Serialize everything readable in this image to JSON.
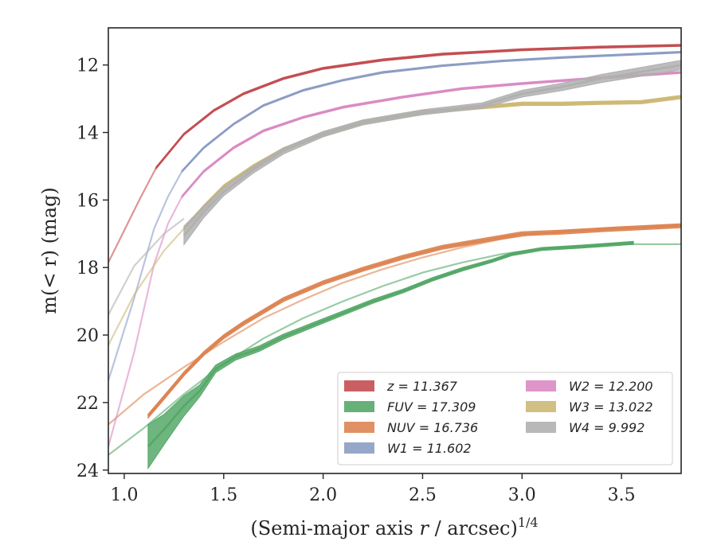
{
  "chart_data": {
    "type": "line",
    "xlabel": "(Semi-major axis r / arcsec)",
    "xlabel_italic": "r",
    "xlabel_exponent": "1/4",
    "ylabel": "m(< r) (mag)",
    "xlim": [
      0.92,
      3.8
    ],
    "ylim": [
      24.1,
      10.9
    ],
    "y_inverted": true,
    "x_ticks": [
      1.0,
      1.5,
      2.0,
      2.5,
      3.0,
      3.5
    ],
    "x_tick_labels": [
      "1.0",
      "1.5",
      "2.0",
      "2.5",
      "3.0",
      "3.5"
    ],
    "y_ticks": [
      12,
      14,
      16,
      18,
      20,
      22,
      24
    ],
    "y_tick_labels": [
      "12",
      "14",
      "16",
      "18",
      "20",
      "22",
      "24"
    ],
    "grid": false,
    "legend_position": "lower-right",
    "series": [
      {
        "name": "z",
        "legend": "z = 11.367",
        "color": "#c44e52",
        "data_x": [
          1.16,
          1.3,
          1.45,
          1.6,
          1.8,
          2.0,
          2.3,
          2.6,
          3.0,
          3.4,
          3.8
        ],
        "data_y": [
          15.05,
          14.05,
          13.35,
          12.85,
          12.4,
          12.1,
          11.85,
          11.68,
          11.55,
          11.47,
          11.42
        ],
        "band": 0.06,
        "model_x": [
          0.92,
          1.0,
          1.08,
          1.16
        ],
        "model_y": [
          17.85,
          16.9,
          15.95,
          15.05
        ]
      },
      {
        "name": "FUV",
        "legend": "FUV = 17.309",
        "color": "#55a868",
        "data_x": [
          1.12,
          1.2,
          1.3,
          1.38,
          1.46,
          1.56,
          1.68,
          1.8,
          1.95,
          2.1,
          2.25,
          2.4,
          2.55,
          2.7,
          2.85,
          2.95,
          3.1,
          3.3,
          3.56
        ],
        "data_y": [
          23.3,
          22.8,
          22.1,
          21.65,
          21.0,
          20.65,
          20.4,
          20.05,
          19.7,
          19.35,
          19.0,
          18.7,
          18.35,
          18.05,
          17.8,
          17.6,
          17.45,
          17.38,
          17.27
        ],
        "band_widths": [
          1.3,
          0.9,
          0.6,
          0.35,
          0.22,
          0.18,
          0.16,
          0.15,
          0.14,
          0.13,
          0.12,
          0.11,
          0.1,
          0.1,
          0.09,
          0.09,
          0.09,
          0.09,
          0.09
        ],
        "model_x": [
          0.92,
          1.1,
          1.3,
          1.5,
          1.7,
          1.9,
          2.1,
          2.3,
          2.5,
          2.7,
          2.9,
          3.1,
          3.3,
          3.5,
          3.8
        ],
        "model_y": [
          23.55,
          22.75,
          21.75,
          20.85,
          20.1,
          19.5,
          19.0,
          18.55,
          18.15,
          17.85,
          17.6,
          17.45,
          17.35,
          17.31,
          17.31
        ]
      },
      {
        "name": "NUV",
        "legend": "NUV = 16.736",
        "color": "#dd8452",
        "data_x": [
          1.12,
          1.2,
          1.3,
          1.4,
          1.5,
          1.6,
          1.8,
          2.0,
          2.2,
          2.4,
          2.6,
          2.8,
          3.0,
          3.2,
          3.4,
          3.6,
          3.8
        ],
        "data_y": [
          22.4,
          21.85,
          21.15,
          20.55,
          20.05,
          19.65,
          18.95,
          18.45,
          18.05,
          17.7,
          17.4,
          17.2,
          17.0,
          16.95,
          16.88,
          16.82,
          16.76
        ],
        "band": 0.12,
        "model_x": [
          0.92,
          1.1,
          1.3,
          1.5,
          1.7,
          1.9,
          2.1,
          2.3,
          2.5,
          2.7,
          2.9,
          3.1,
          3.3,
          3.5,
          3.8
        ],
        "model_y": [
          22.65,
          21.75,
          20.95,
          20.2,
          19.5,
          18.95,
          18.45,
          18.05,
          17.7,
          17.4,
          17.15,
          16.98,
          16.88,
          16.8,
          16.74
        ]
      },
      {
        "name": "W1",
        "legend": "W1 = 11.602",
        "color": "#8c9dc4",
        "data_x": [
          1.29,
          1.4,
          1.55,
          1.7,
          1.9,
          2.1,
          2.3,
          2.6,
          2.9,
          3.2,
          3.5,
          3.8
        ],
        "data_y": [
          15.15,
          14.45,
          13.75,
          13.2,
          12.75,
          12.45,
          12.22,
          12.02,
          11.88,
          11.78,
          11.7,
          11.62
        ],
        "band": 0.05,
        "model_x": [
          0.92,
          1.05,
          1.15,
          1.22,
          1.29
        ],
        "model_y": [
          21.35,
          18.9,
          16.85,
          15.9,
          15.15
        ]
      },
      {
        "name": "W2",
        "legend": "W2 = 12.200",
        "color": "#da8bc3",
        "data_x": [
          1.29,
          1.4,
          1.55,
          1.7,
          1.9,
          2.1,
          2.4,
          2.7,
          3.0,
          3.3,
          3.6,
          3.8
        ],
        "data_y": [
          15.9,
          15.15,
          14.45,
          13.95,
          13.55,
          13.25,
          12.95,
          12.7,
          12.55,
          12.42,
          12.3,
          12.22
        ],
        "band": 0.06,
        "model_x": [
          0.92,
          1.05,
          1.15,
          1.22,
          1.29
        ],
        "model_y": [
          23.3,
          20.5,
          17.9,
          16.7,
          15.9
        ]
      },
      {
        "name": "W3",
        "legend": "W3 = 13.022",
        "color": "#ccb974",
        "data_x": [
          1.3,
          1.4,
          1.5,
          1.65,
          1.8,
          2.0,
          2.2,
          2.5,
          2.8,
          3.0,
          3.2,
          3.4,
          3.6,
          3.8
        ],
        "data_y": [
          16.85,
          16.2,
          15.6,
          15.0,
          14.5,
          14.05,
          13.7,
          13.4,
          13.25,
          13.15,
          13.15,
          13.12,
          13.1,
          12.95
        ],
        "band": 0.1,
        "model_x": [
          0.92,
          1.05,
          1.2,
          1.3
        ],
        "model_y": [
          20.3,
          18.8,
          17.5,
          16.85
        ]
      },
      {
        "name": "W4",
        "legend": "W4 = 9.992",
        "color": "#b0b0b0",
        "data_x": [
          1.3,
          1.4,
          1.5,
          1.65,
          1.8,
          2.0,
          2.2,
          2.5,
          2.8,
          3.0,
          3.2,
          3.4,
          3.6,
          3.8
        ],
        "data_y": [
          17.05,
          16.35,
          15.75,
          15.1,
          14.55,
          14.05,
          13.7,
          13.4,
          13.2,
          12.85,
          12.65,
          12.4,
          12.2,
          12.0
        ],
        "band_widths": [
          0.55,
          0.35,
          0.25,
          0.2,
          0.18,
          0.16,
          0.15,
          0.15,
          0.16,
          0.2,
          0.22,
          0.24,
          0.26,
          0.28
        ],
        "model_x": [
          0.92,
          1.05,
          1.2,
          1.3
        ],
        "model_y": [
          19.4,
          17.95,
          17.0,
          16.55
        ]
      }
    ]
  }
}
